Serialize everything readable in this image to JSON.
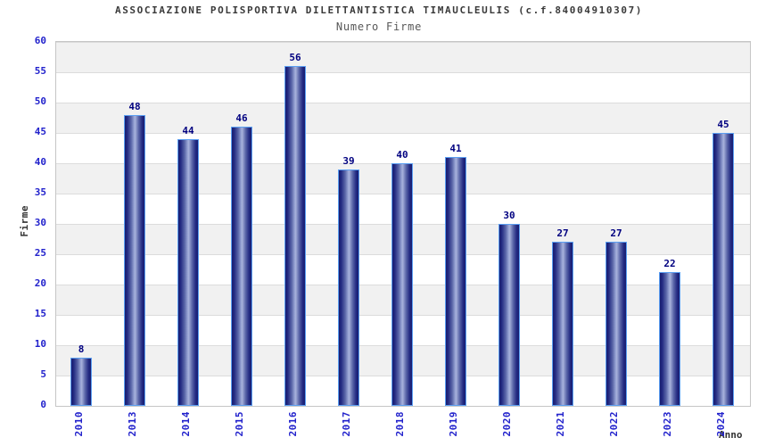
{
  "chart_data": {
    "type": "bar",
    "title": "ASSOCIAZIONE POLISPORTIVA DILETTANTISTICA TIMAUCLEULIS (c.f.84004910307)",
    "subtitle": "Numero Firme",
    "xlabel": "Anno",
    "ylabel": "Firme",
    "categories": [
      "2010",
      "2013",
      "2014",
      "2015",
      "2016",
      "2017",
      "2018",
      "2019",
      "2020",
      "2021",
      "2022",
      "2023",
      "2024"
    ],
    "values": [
      8,
      48,
      44,
      46,
      56,
      39,
      40,
      41,
      30,
      27,
      27,
      22,
      45
    ],
    "ylim": [
      0,
      60
    ],
    "ytick_step": 5,
    "grid": true,
    "legend": "none",
    "band_colors": [
      "#f1f1f1",
      "#ffffff"
    ],
    "colors": {
      "title": "#3a3a3a",
      "subtitle": "#585858",
      "tick_label": "#2222cc",
      "value_label": "#000080",
      "axis_label": "#333333",
      "bar_edge": "#181d70",
      "bar_center": "#a8b2dc",
      "bar_border": "#5b9ff2",
      "gridline": "#dcdcdc",
      "plot_border": "#c6c6c6"
    }
  }
}
